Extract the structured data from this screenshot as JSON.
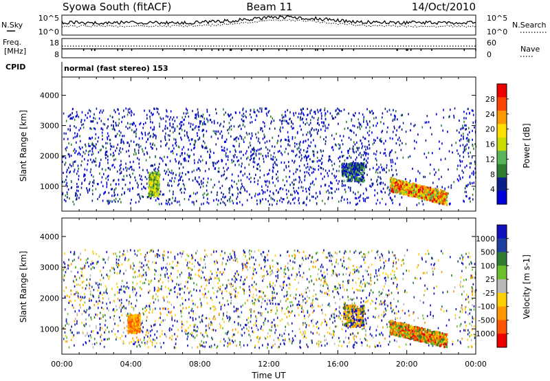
{
  "header": {
    "title": "Syowa South (fitACF)",
    "beam": "Beam 11",
    "date": "14/Oct/2010"
  },
  "strip": {
    "left_labels": [
      "N.Sky",
      "Freq.",
      "[MHz]",
      "CPID"
    ],
    "right_labels": [
      "N.Search",
      "Nave"
    ],
    "noise_left_ticks": [
      "10^5",
      "10^0"
    ],
    "noise_right_ticks": [
      "10^5",
      "10^0"
    ],
    "freq_left_ticks": [
      "18",
      "8"
    ],
    "freq_right_ticks": [
      "60",
      "0"
    ],
    "cpid_text": "normal (fast stereo) 153"
  },
  "colors": {
    "power_scale": [
      "#0000dd",
      "#0a1f8c",
      "#2e7d32",
      "#5ab45a",
      "#c8dc00",
      "#ffe000",
      "#ff9900",
      "#ff4400",
      "#ee0000"
    ],
    "velocity_scale": [
      "#1010c0",
      "#1f3fa0",
      "#2e7d32",
      "#6abf2a",
      "#b8b8b8",
      "#ffd000",
      "#ff9800",
      "#ff5500",
      "#ee0000"
    ]
  },
  "chart_data": [
    {
      "type": "heatmap",
      "panel": "power",
      "xlabel": "",
      "ylabel": "Slant Range [km]",
      "x_range_hours": [
        0,
        24
      ],
      "ylim": [
        180,
        4600
      ],
      "y_ticks": [
        "1000",
        "2000",
        "3000",
        "4000"
      ],
      "colorbar": {
        "label": "Power [dB]",
        "ticks": [
          "4",
          "8",
          "12",
          "16",
          "20",
          "24",
          "28"
        ]
      },
      "features": [
        {
          "hours": [
            0,
            24
          ],
          "range_km": [
            500,
            3600
          ],
          "value": "4-8 dB",
          "description": "sparse background scatter"
        },
        {
          "hours": [
            5.0,
            5.6
          ],
          "range_km": [
            700,
            1500
          ],
          "value": "12-20 dB",
          "description": "echo patch"
        },
        {
          "hours": [
            16.2,
            17.5
          ],
          "range_km": [
            1200,
            1800
          ],
          "value": "8-16 dB",
          "description": "echo band"
        },
        {
          "hours": [
            19.0,
            22.3
          ],
          "range_km": [
            500,
            1200
          ],
          "value": "16-28 dB",
          "description": "strong descending echo band"
        }
      ]
    },
    {
      "type": "heatmap",
      "panel": "velocity",
      "xlabel": "Time UT",
      "ylabel": "Slant Range [km]",
      "x_ticks": [
        "00:00",
        "04:00",
        "08:00",
        "12:00",
        "16:00",
        "20:00",
        "00:00"
      ],
      "x_range_hours": [
        0,
        24
      ],
      "ylim": [
        180,
        4600
      ],
      "y_ticks": [
        "1000",
        "2000",
        "3000",
        "4000"
      ],
      "colorbar": {
        "label": "Velocity [m s-1]",
        "ticks": [
          "1000",
          "500",
          "100",
          "25",
          "-25",
          "-100",
          "-500",
          "-1000"
        ]
      },
      "features": [
        {
          "hours": [
            0,
            24
          ],
          "range_km": [
            500,
            3600
          ],
          "value": "mixed",
          "description": "sparse background scatter"
        },
        {
          "hours": [
            3.8,
            4.5
          ],
          "range_km": [
            900,
            1500
          ],
          "value": "-100 to -500 m/s",
          "description": "negative velocity patch"
        },
        {
          "hours": [
            16.3,
            17.5
          ],
          "range_km": [
            1100,
            1800
          ],
          "value": "-100 to -500 m/s",
          "description": "echo band"
        },
        {
          "hours": [
            19.0,
            22.3
          ],
          "range_km": [
            500,
            1200
          ],
          "value": "-100 to -1000 m/s",
          "description": "strong descending echo band"
        }
      ]
    }
  ]
}
